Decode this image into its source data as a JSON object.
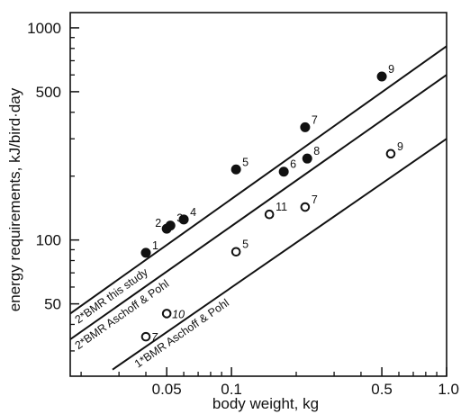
{
  "chart_data": {
    "type": "scatter",
    "title": "",
    "xlabel": "body weight, kg",
    "ylabel": "energy requirements, kJ/bird·day",
    "x_scale": "log",
    "y_scale": "log",
    "xlim": [
      0.0178,
      1.0
    ],
    "ylim": [
      22.8,
      1180
    ],
    "x_ticks": [
      0.05,
      0.1,
      0.5,
      1.0
    ],
    "x_tick_labels": [
      "0.05",
      "0.1",
      "0.5",
      "1.0"
    ],
    "y_ticks": [
      50,
      100,
      500,
      1000
    ],
    "y_tick_labels": [
      "50",
      "100",
      "500",
      "1000"
    ],
    "grid": false,
    "series": [
      {
        "marker": "filled-circle",
        "x": [
          0.04,
          0.05,
          0.052,
          0.06,
          0.105,
          0.175,
          0.22,
          0.225,
          0.5
        ],
        "y": [
          87,
          113,
          117,
          125,
          215,
          210,
          340,
          242,
          590
        ],
        "labels": [
          "1",
          "2",
          "3",
          "4",
          "5",
          "6",
          "7",
          "8",
          "9"
        ]
      },
      {
        "marker": "open-circle",
        "x": [
          0.04,
          0.05,
          0.105,
          0.15,
          0.22,
          0.55
        ],
        "y": [
          35,
          45,
          88,
          132,
          143,
          255
        ],
        "labels": [
          "7",
          "10",
          "5",
          "11",
          "7",
          "9"
        ]
      }
    ],
    "lines": [
      {
        "label": "2*BMR this study",
        "x": [
          0.0178,
          1.0
        ],
        "y": [
          45,
          820
        ]
      },
      {
        "label": "2*BMR Aschoff & Pohl",
        "x": [
          0.0178,
          1.0
        ],
        "y": [
          34,
          600
        ]
      },
      {
        "label": "1*BMR Aschoff & Pohl",
        "x": [
          0.028,
          1.0
        ],
        "y": [
          24.5,
          300
        ]
      }
    ]
  }
}
